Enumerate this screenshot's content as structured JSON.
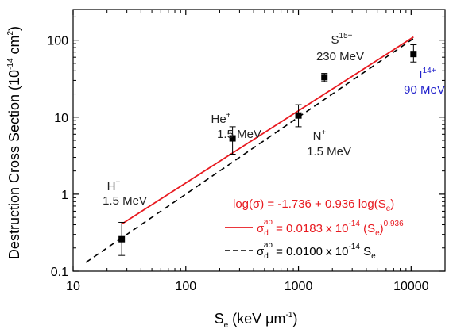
{
  "chart_data": {
    "type": "scatter",
    "xlabel": {
      "main": "S",
      "sub": "e",
      "unit_pre": " (keV ",
      "mu": "μ",
      "unit_m": "m",
      "exp": "-1",
      "close": ")"
    },
    "ylabel": {
      "pre": "Destruction Cross Section (10",
      "exp1": "-14",
      "mid": " cm",
      "exp2": "2",
      "close": ")"
    },
    "x_scale": "log",
    "y_scale": "log",
    "xlim": [
      10,
      20000
    ],
    "ylim": [
      0.1,
      250
    ],
    "x_ticks": [
      10,
      100,
      1000,
      10000
    ],
    "x_tick_labels": [
      "10",
      "100",
      "1000",
      "10000"
    ],
    "y_ticks": [
      0.1,
      1,
      10,
      100
    ],
    "y_tick_labels": [
      "0.1",
      "1",
      "10",
      "100"
    ],
    "points": [
      {
        "x": 27,
        "y": 0.26,
        "err_low": 0.16,
        "err_high": 0.43
      },
      {
        "x": 260,
        "y": 5.3,
        "err_low": 3.3,
        "err_high": 7.5
      },
      {
        "x": 1000,
        "y": 10.5,
        "err_low": 7.5,
        "err_high": 14.5
      },
      {
        "x": 1700,
        "y": 33,
        "err_low": 29,
        "err_high": 37
      },
      {
        "x": 10500,
        "y": 66,
        "err_low": 52,
        "err_high": 87
      }
    ],
    "series": [
      {
        "name": "fit_red",
        "color": "#e8191f",
        "style": "solid",
        "x": [
          27,
          10500
        ],
        "y": [
          0.4092,
          109.9
        ]
      },
      {
        "name": "fit_black",
        "color": "#000000",
        "style": "dashed",
        "x": [
          13,
          10500
        ],
        "y": [
          0.13,
          105
        ]
      }
    ],
    "annotations": [
      {
        "id": "h",
        "ion": "H",
        "charge": "+",
        "energy": "1.5 MeV",
        "color": "#222222"
      },
      {
        "id": "he",
        "ion": "He",
        "charge": "+",
        "energy": "1.5 MeV",
        "color": "#222222"
      },
      {
        "id": "n",
        "ion": "N",
        "charge": "+",
        "energy": "1.5 MeV",
        "color": "#222222"
      },
      {
        "id": "s",
        "ion": "S",
        "charge": "15+",
        "energy": "230 MeV",
        "color": "#222222"
      },
      {
        "id": "i",
        "ion": "I",
        "charge": "14+",
        "energy": "90 MeV",
        "color": "#2222cc"
      }
    ],
    "legend": {
      "placement": "bottom-right",
      "equation": "log(σ) = -1.736 + 0.936 log(S",
      "equation_sub": "e",
      "equation_close": ")",
      "red_entry": {
        "sigma": "σ",
        "d": "d",
        "ap": "ap",
        "text": " = 0.0183 x 10",
        "exp": "-14",
        "paren": " (S",
        "sub": "e",
        "close": ")",
        "pow": "0.936"
      },
      "black_entry": {
        "sigma": "σ",
        "d": "d",
        "ap": "ap",
        "text": " = 0.0100 x 10",
        "exp": "-14",
        "s": " S",
        "sub": "e"
      }
    },
    "colors": {
      "fit_red": "#e8191f",
      "annotation_blue": "#2222cc",
      "point": "#000000"
    }
  }
}
